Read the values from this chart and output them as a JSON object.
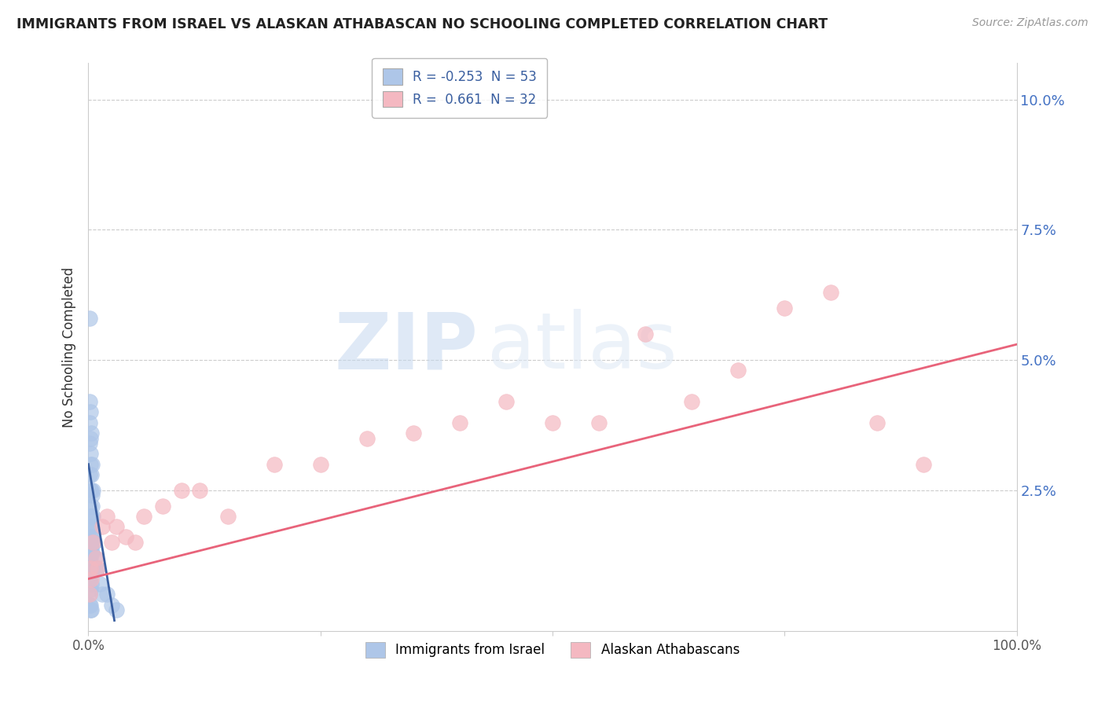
{
  "title": "IMMIGRANTS FROM ISRAEL VS ALASKAN ATHABASCAN NO SCHOOLING COMPLETED CORRELATION CHART",
  "source": "Source: ZipAtlas.com",
  "ylabel": "No Schooling Completed",
  "legend_label1": "Immigrants from Israel",
  "legend_label2": "Alaskan Athabascans",
  "R1": -0.253,
  "N1": 53,
  "R2": 0.661,
  "N2": 32,
  "color1": "#aec6e8",
  "color2": "#f4b8c1",
  "line_color1": "#3a5fa0",
  "line_color2": "#e8637a",
  "watermark_zip": "ZIP",
  "watermark_atlas": "atlas",
  "xlim": [
    0.0,
    1.0
  ],
  "ylim": [
    -0.002,
    0.107
  ],
  "yticks": [
    0.0,
    0.025,
    0.05,
    0.075,
    0.1
  ],
  "ytick_labels_right": [
    "",
    "2.5%",
    "5.0%",
    "7.5%",
    "10.0%"
  ],
  "background_color": "#ffffff",
  "grid_color": "#cccccc",
  "blue_x": [
    0.001,
    0.001,
    0.001,
    0.001,
    0.001,
    0.001,
    0.001,
    0.001,
    0.001,
    0.001,
    0.002,
    0.002,
    0.002,
    0.002,
    0.002,
    0.002,
    0.002,
    0.002,
    0.002,
    0.003,
    0.003,
    0.003,
    0.003,
    0.003,
    0.003,
    0.004,
    0.004,
    0.004,
    0.005,
    0.005,
    0.005,
    0.006,
    0.007,
    0.008,
    0.01,
    0.012,
    0.015,
    0.02,
    0.025,
    0.03,
    0.001,
    0.002,
    0.002,
    0.003,
    0.004,
    0.001,
    0.002,
    0.003,
    0.004,
    0.005,
    0.002,
    0.003,
    0.001
  ],
  "blue_y": [
    0.034,
    0.028,
    0.022,
    0.018,
    0.015,
    0.012,
    0.01,
    0.008,
    0.005,
    0.003,
    0.03,
    0.025,
    0.02,
    0.017,
    0.014,
    0.012,
    0.009,
    0.006,
    0.003,
    0.025,
    0.02,
    0.016,
    0.013,
    0.01,
    0.007,
    0.022,
    0.018,
    0.013,
    0.02,
    0.015,
    0.01,
    0.015,
    0.012,
    0.01,
    0.01,
    0.007,
    0.005,
    0.005,
    0.003,
    0.002,
    0.038,
    0.035,
    0.032,
    0.028,
    0.024,
    0.042,
    0.04,
    0.036,
    0.03,
    0.025,
    0.002,
    0.002,
    0.058
  ],
  "pink_x": [
    0.001,
    0.002,
    0.003,
    0.005,
    0.008,
    0.01,
    0.015,
    0.02,
    0.025,
    0.03,
    0.04,
    0.05,
    0.06,
    0.08,
    0.1,
    0.12,
    0.15,
    0.2,
    0.25,
    0.3,
    0.35,
    0.4,
    0.45,
    0.5,
    0.55,
    0.6,
    0.65,
    0.7,
    0.75,
    0.8,
    0.85,
    0.9
  ],
  "pink_y": [
    0.005,
    0.01,
    0.008,
    0.015,
    0.012,
    0.01,
    0.018,
    0.02,
    0.015,
    0.018,
    0.016,
    0.015,
    0.02,
    0.022,
    0.025,
    0.025,
    0.02,
    0.03,
    0.03,
    0.035,
    0.036,
    0.038,
    0.042,
    0.038,
    0.038,
    0.055,
    0.042,
    0.048,
    0.06,
    0.063,
    0.038,
    0.03
  ],
  "blue_line_x": [
    0.0,
    0.028
  ],
  "blue_line_y": [
    0.03,
    0.0
  ],
  "pink_line_x": [
    0.0,
    1.0
  ],
  "pink_line_y": [
    0.008,
    0.053
  ]
}
